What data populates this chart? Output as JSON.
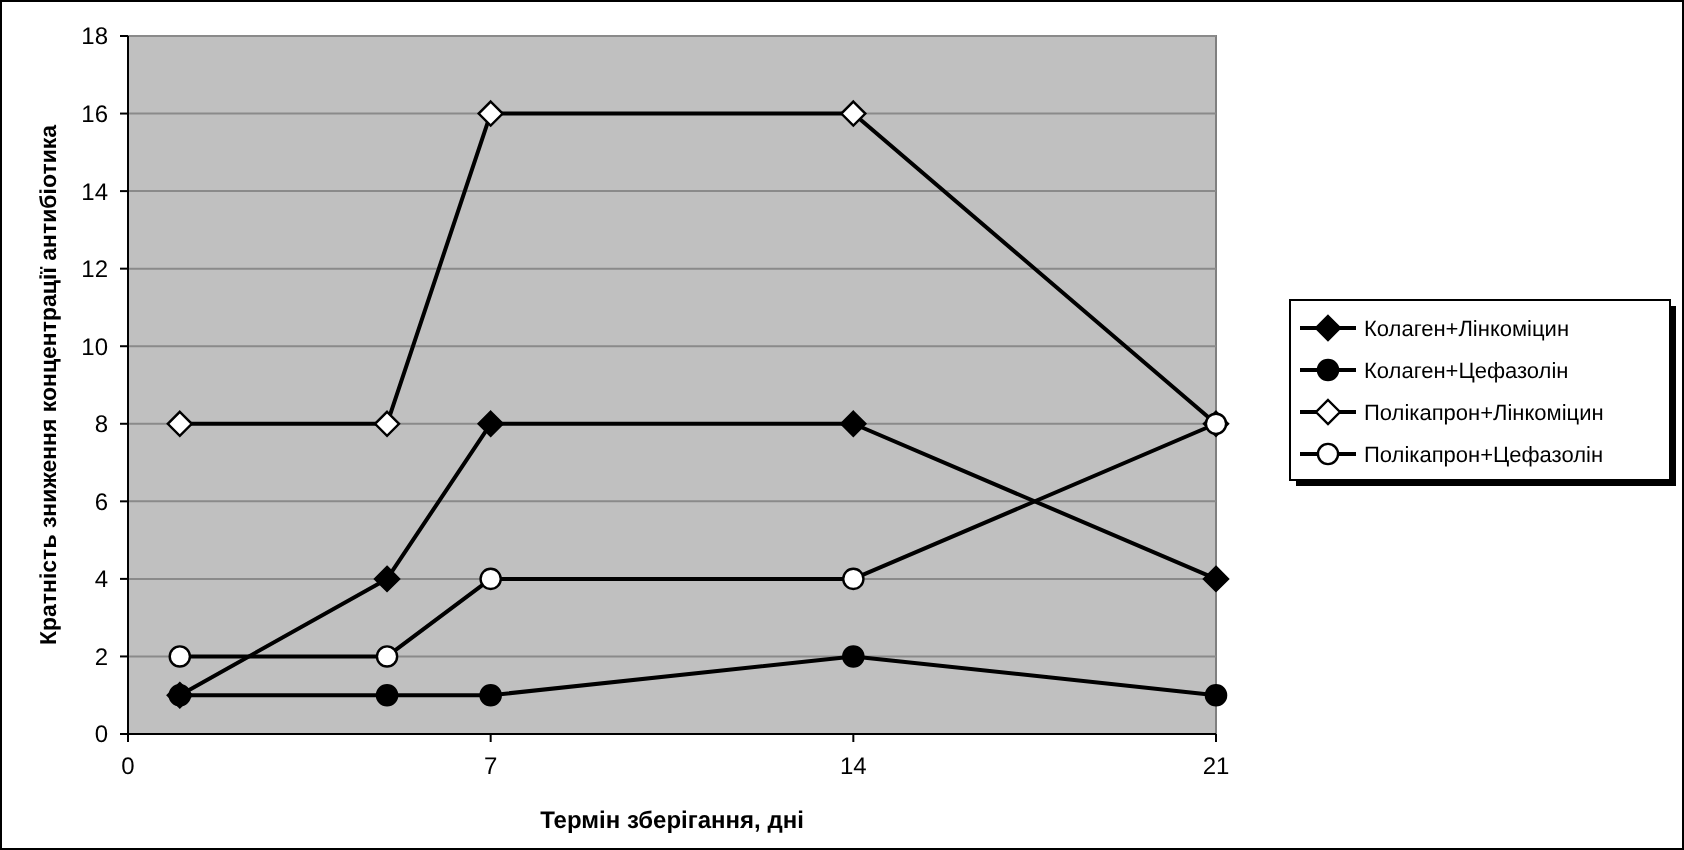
{
  "chart_data": {
    "type": "line",
    "xlabel": "Термін зберігання, дні",
    "ylabel": "Кратність зниження концентрації антибіотика",
    "x": [
      1,
      5,
      7,
      14,
      21
    ],
    "xlim": [
      0,
      21
    ],
    "xticks": [
      0,
      7,
      14,
      21
    ],
    "ylim": [
      0,
      18
    ],
    "yticks": [
      0,
      2,
      4,
      6,
      8,
      10,
      12,
      14,
      16,
      18
    ],
    "grid": "y",
    "legend": "right",
    "line_style": "solid",
    "series": [
      {
        "name": "Колаген+Лінкоміцин",
        "color": "#000000",
        "marker": "diamond",
        "values": [
          1,
          4,
          8,
          8,
          4
        ]
      },
      {
        "name": "Колаген+Цефазолін",
        "color": "#000000",
        "marker": "circle",
        "values": [
          1,
          1,
          1,
          2,
          1
        ]
      },
      {
        "name": "Полікапрон+Лінкоміцин",
        "color": "#000000",
        "marker": "diamond",
        "values": [
          8,
          8,
          16,
          16,
          8
        ]
      },
      {
        "name": "Полікапрон+Цефазолін",
        "color": "#000000",
        "marker": "circle",
        "values": [
          2,
          2,
          4,
          4,
          8
        ]
      }
    ]
  }
}
